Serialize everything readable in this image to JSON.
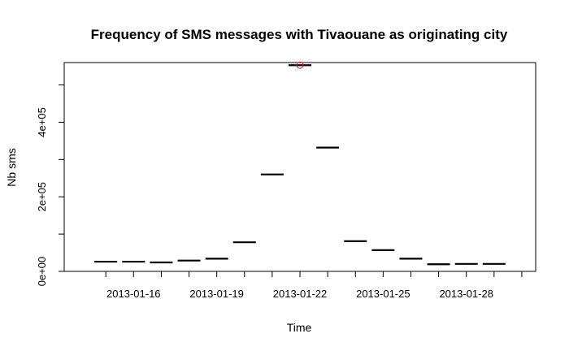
{
  "chart_data": {
    "type": "scatter",
    "title": "Frequency of SMS messages with Tivaouane as originating city",
    "xlabel": "Time",
    "ylabel": "Nb sms",
    "x_start": "2013-01-15",
    "x_end": "2013-01-30",
    "xlim": [
      "2013-01-14",
      "2013-01-31"
    ],
    "ylim": [
      0,
      560000
    ],
    "y_ticks_major": [
      0,
      200000,
      400000
    ],
    "y_tick_labels": [
      "0e+00",
      "2e+05",
      "4e+05"
    ],
    "y_ticks_minor": [
      100000,
      300000,
      500000
    ],
    "x_ticks_major": [
      "2013-01-16",
      "2013-01-19",
      "2013-01-22",
      "2013-01-25",
      "2013-01-28"
    ],
    "x_tick_labels": [
      "2013-01-16",
      "2013-01-19",
      "2013-01-22",
      "2013-01-25",
      "2013-01-28"
    ],
    "points": [
      {
        "x": "2013-01-15",
        "y": 26000
      },
      {
        "x": "2013-01-16",
        "y": 26000
      },
      {
        "x": "2013-01-17",
        "y": 24000
      },
      {
        "x": "2013-01-18",
        "y": 29000
      },
      {
        "x": "2013-01-19",
        "y": 34000
      },
      {
        "x": "2013-01-20",
        "y": 78000
      },
      {
        "x": "2013-01-21",
        "y": 260000
      },
      {
        "x": "2013-01-22",
        "y": 553000
      },
      {
        "x": "2013-01-23",
        "y": 332000
      },
      {
        "x": "2013-01-24",
        "y": 81000
      },
      {
        "x": "2013-01-25",
        "y": 57000
      },
      {
        "x": "2013-01-26",
        "y": 34000
      },
      {
        "x": "2013-01-27",
        "y": 19000
      },
      {
        "x": "2013-01-28",
        "y": 20000
      },
      {
        "x": "2013-01-29",
        "y": 20000
      }
    ],
    "highlight": {
      "x": "2013-01-22",
      "y": 553000,
      "color": "#d62728",
      "marker": "circle"
    },
    "segment_color": "#000000",
    "grid": false,
    "legend": "none"
  }
}
